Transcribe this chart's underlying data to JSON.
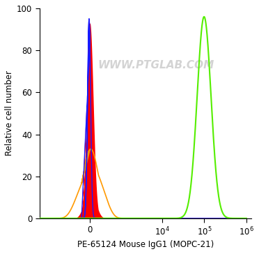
{
  "xlabel": "PE-65124 Mouse IgG1 (MOPC-21)",
  "ylabel": "Relative cell number",
  "ylim": [
    0,
    100
  ],
  "watermark": "WWW.PTGLAB.COM",
  "watermark_color": "#cccccc",
  "background_color": "#ffffff",
  "linthresh": 300,
  "linscale": 0.18,
  "xlim_left": -3000,
  "xlim_right": 1300000,
  "blue_color": "#1a1aff",
  "red_color": "#ff0000",
  "orange_color": "#ff9900",
  "green_color": "#55ee00",
  "blue_mu": -30,
  "blue_sigma": 55,
  "blue_height": 95,
  "red_mu": 0,
  "red_sigma": 120,
  "red_height": 93,
  "orange_mu": 30,
  "orange_sigma": 280,
  "orange_height": 33,
  "green_mu_log": 11.5,
  "green_sigma_log": 0.38,
  "green_height": 96
}
